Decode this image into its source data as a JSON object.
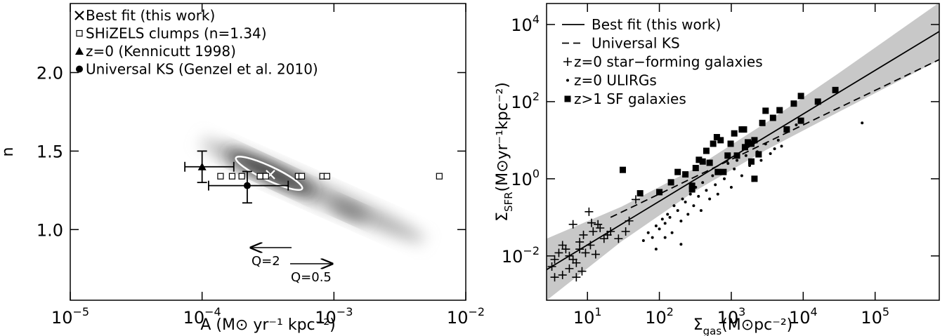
{
  "chart_data": [
    {
      "type": "scatter",
      "xlabel": "A (M⊙ yr⁻¹ kpc⁻²)",
      "ylabel": "n",
      "xscale": "log",
      "xlim": [
        1e-05,
        0.01
      ],
      "xticks": [
        {
          "value": 1e-05,
          "label": "10",
          "exponent": "−5"
        },
        {
          "value": 0.0001,
          "label": "10",
          "exponent": "−4"
        },
        {
          "value": 0.001,
          "label": "10",
          "exponent": "−3"
        },
        {
          "value": 0.01,
          "label": "10",
          "exponent": "−2"
        }
      ],
      "ylim": [
        0.55,
        2.44
      ],
      "yticks": [
        {
          "value": 1,
          "label": "1.0"
        },
        {
          "value": 1.5,
          "label": "1.5"
        },
        {
          "value": 2,
          "label": "2.0"
        }
      ],
      "legend": "upper left",
      "series": [
        {
          "name": "Best fit (this work)",
          "marker": "x",
          "color": "#ffffff",
          "x": [
            0.00033
          ],
          "values": [
            1.35
          ]
        },
        {
          "name": "SHiZELS clumps (n=1.34)",
          "marker": "square-open",
          "color": "#000000",
          "x": [
            0.000138,
            0.000169,
            0.0002,
            0.000275,
            0.000304,
            0.000535,
            0.00057,
            0.00082,
            0.000885,
            0.0063
          ],
          "values": [
            1.34,
            1.34,
            1.34,
            1.34,
            1.34,
            1.34,
            1.34,
            1.34,
            1.34,
            1.34
          ]
        },
        {
          "name": "z=0 (Kennicutt 1998)",
          "marker": "triangle",
          "color": "#000000",
          "x": [
            0.0001
          ],
          "values": [
            1.4
          ],
          "x_low": [
            7.4e-05
          ],
          "x_high": [
            0.000174
          ],
          "y_low": [
            1.3
          ],
          "y_high": [
            1.5
          ]
        },
        {
          "name": "Universal KS (Genzel et al. 2010)",
          "marker": "circle",
          "color": "#000000",
          "x": [
            0.00022
          ],
          "values": [
            1.28
          ],
          "x_low": [
            0.000112
          ],
          "x_high": [
            0.00045
          ],
          "y_low": [
            1.17
          ],
          "y_high": [
            1.37
          ]
        }
      ],
      "annotations": [
        "Q=2",
        "Q=0.5"
      ]
    },
    {
      "type": "scatter",
      "xlabel": {
        "main": "Σ",
        "sub": "gas",
        "rest": "(M⊙pc⁻²)"
      },
      "ylabel": {
        "main": "Σ",
        "sub": "SFR",
        "rest": "(M⊙yr⁻¹kpc⁻²)"
      },
      "xscale": "log",
      "yscale": "log",
      "xlim": [
        2.7,
        780000
      ],
      "xticks": [
        {
          "value": 10,
          "label": "10",
          "exponent": "1"
        },
        {
          "value": 100,
          "label": "10",
          "exponent": "2"
        },
        {
          "value": 1000,
          "label": "10",
          "exponent": "3"
        },
        {
          "value": 10000,
          "label": "10",
          "exponent": "4"
        },
        {
          "value": 100000,
          "label": "10",
          "exponent": "5"
        }
      ],
      "ylim": [
        0.00071,
        35000
      ],
      "yticks": [
        {
          "value": 0.01,
          "label": "10",
          "exponent": "−2"
        },
        {
          "value": 1,
          "label": "10",
          "exponent": "0"
        },
        {
          "value": 100,
          "label": "10",
          "exponent": "2"
        },
        {
          "value": 10000,
          "label": "10",
          "exponent": "4"
        }
      ],
      "legend": "upper left",
      "band": {
        "color": "#c8c8c8",
        "x": [
          2.7,
          30,
          300,
          3000,
          30000,
          780000
        ],
        "upper": [
          0.028,
          0.19,
          1.8,
          28,
          520,
          37000
        ],
        "lower": [
          0.0007,
          0.024,
          0.46,
          5.5,
          52,
          1200
        ]
      },
      "series": [
        {
          "name": "Best fit (this work)",
          "marker": "line",
          "color": "#000000",
          "x": [
            2.7,
            780000
          ],
          "values": [
            0.0044,
            6600
          ]
        },
        {
          "name": "Universal KS",
          "marker": "dashed",
          "color": "#000000",
          "x": [
            21,
            780000
          ],
          "values": [
            0.1,
            1230
          ]
        },
        {
          "name": "z=0 star−forming galaxies",
          "marker": "plus",
          "color": "#000000",
          "x": [
            3.2,
            3.5,
            4.0,
            4.5,
            5.0,
            5.6,
            6.3,
            7.0,
            7.8,
            8.8,
            9.4,
            11,
            12,
            14,
            15,
            17,
            19,
            21,
            27,
            34,
            47,
            10.5,
            6.3,
            4.5,
            7.0,
            3.5,
            5.6,
            8.4,
            13,
            7.8,
            11.4,
            38
          ],
          "values": [
            0.0053,
            0.0081,
            0.012,
            0.019,
            0.015,
            0.01,
            0.0081,
            0.0066,
            0.023,
            0.035,
            0.012,
            0.019,
            0.043,
            0.066,
            0.053,
            0.028,
            0.035,
            0.043,
            0.028,
            0.043,
            0.29,
            0.14,
            0.066,
            0.0032,
            0.0028,
            0.0028,
            0.0047,
            0.004,
            0.011,
            0.015,
            0.072,
            0.081
          ]
        },
        {
          "name": "z=0 ULIRGs",
          "marker": "dot",
          "color": "#000000",
          "x": [
            60,
            70,
            80,
            90,
            100,
            110,
            120,
            130,
            140,
            150,
            160,
            180,
            200,
            210,
            230,
            250,
            270,
            300,
            320,
            350,
            380,
            400,
            450,
            500,
            550,
            600,
            650,
            700,
            800,
            900,
            1000,
            1100,
            1200,
            1400,
            1600,
            1800,
            2000,
            2300,
            2600,
            3000,
            3500,
            4000,
            4500,
            5000,
            8000,
            66000,
            120,
            200,
            90
          ],
          "values": [
            0.025,
            0.04,
            0.03,
            0.06,
            0.05,
            0.09,
            0.07,
            0.12,
            0.1,
            0.04,
            0.2,
            0.15,
            0.08,
            0.3,
            0.25,
            0.12,
            0.4,
            0.2,
            0.6,
            0.35,
            0.15,
            0.8,
            0.5,
            0.3,
            1.2,
            0.7,
            0.4,
            1.5,
            1.0,
            2.5,
            0.6,
            1.8,
            3.0,
            1.2,
            4.0,
            2.2,
            0.9,
            5.0,
            3.0,
            8.0,
            4.5,
            6.0,
            10,
            7.0,
            25,
            28,
            0.03,
            0.02,
            0.015
          ]
        },
        {
          "name": "z>1 SF galaxies",
          "marker": "square",
          "color": "#000000",
          "x": [
            31,
            54,
            100,
            145,
            180,
            230,
            285,
            320,
            355,
            450,
            500,
            560,
            630,
            710,
            780,
            890,
            980,
            1100,
            1200,
            1400,
            1550,
            1700,
            1900,
            2100,
            2400,
            2700,
            3000,
            3800,
            4700,
            5900,
            7400,
            9300,
            16000,
            28000,
            9300,
            1500,
            2100,
            1900,
            400,
            285,
            650
          ],
          "values": [
            1.7,
            0.42,
            0.45,
            0.81,
            1.5,
            1.3,
            0.66,
            1.9,
            3.1,
            5.3,
            2.6,
            8.1,
            12,
            10,
            1.5,
            4.0,
            8.1,
            15,
            4.0,
            19,
            6.6,
            8.8,
            8.1,
            10,
            4.3,
            28,
            58,
            38,
            60,
            19,
            89,
            32,
            100,
            200,
            140,
            19,
            1.0,
            2.8,
            2.8,
            0.53,
            1.5
          ]
        }
      ]
    }
  ]
}
